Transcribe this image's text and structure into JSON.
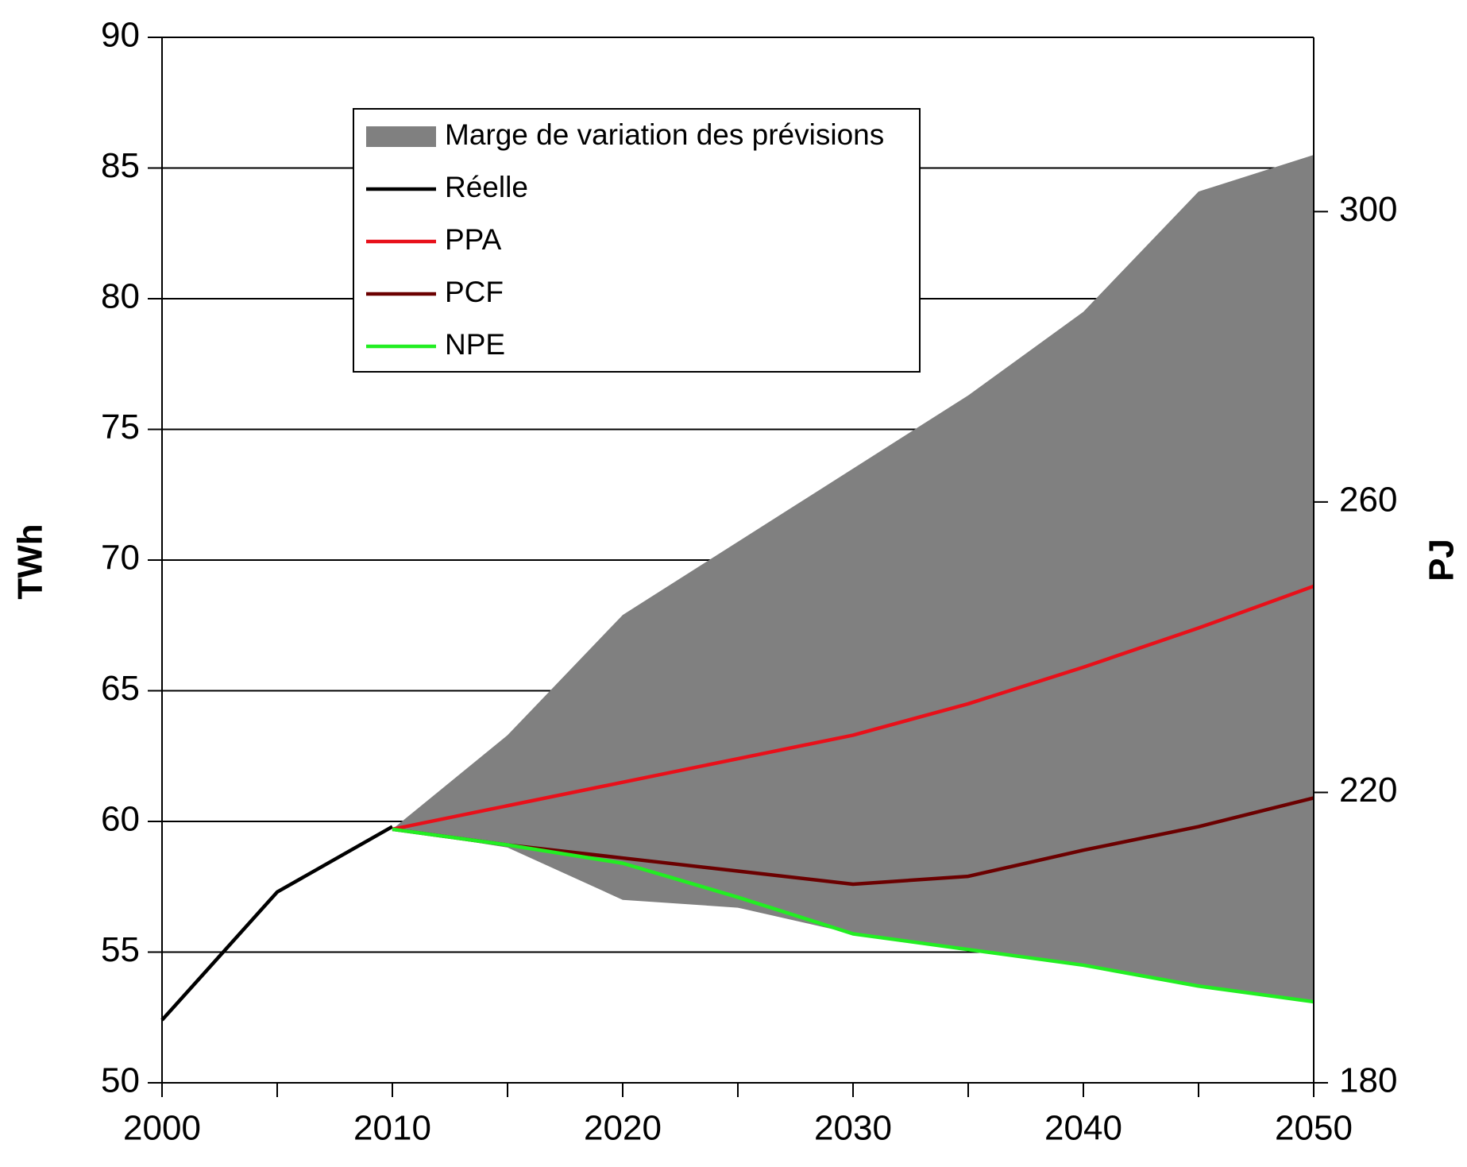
{
  "chart_data": {
    "type": "line",
    "x": [
      2000,
      2005,
      2010,
      2015,
      2020,
      2025,
      2030,
      2035,
      2040,
      2045,
      2050
    ],
    "xlim": [
      2000,
      2050
    ],
    "xticks": [
      2000,
      2010,
      2020,
      2030,
      2040,
      2050
    ],
    "xticks_minor": [
      2005,
      2015,
      2025,
      2035,
      2045
    ],
    "y_label": "TWh",
    "ylim": [
      50,
      90
    ],
    "yticks": [
      50,
      55,
      60,
      65,
      70,
      75,
      80,
      85,
      90
    ],
    "y2_label": "PJ",
    "y2lim": [
      180,
      324
    ],
    "y2ticks": [
      180,
      220,
      260,
      300
    ],
    "grid": true,
    "band": {
      "name": "Marge de variation des prévisions",
      "color": "#808080",
      "upper": [
        null,
        null,
        59.7,
        63.3,
        67.9,
        70.7,
        73.5,
        76.3,
        79.5,
        84.1,
        85.5
      ],
      "lower": [
        null,
        null,
        59.7,
        59.0,
        57.0,
        56.7,
        55.7,
        55.1,
        54.5,
        53.7,
        53.1
      ]
    },
    "series": [
      {
        "name": "Réelle",
        "color": "#000000",
        "values": [
          52.4,
          57.3,
          59.8,
          null,
          null,
          null,
          null,
          null,
          null,
          null,
          null
        ]
      },
      {
        "name": "PPA",
        "color": "#e8101a",
        "values": [
          null,
          null,
          59.7,
          60.6,
          61.5,
          62.4,
          63.3,
          64.5,
          65.9,
          67.4,
          69.0
        ]
      },
      {
        "name": "PCF",
        "color": "#6b0000",
        "values": [
          null,
          null,
          59.7,
          59.1,
          58.6,
          58.1,
          57.6,
          57.9,
          58.9,
          59.8,
          60.9
        ]
      },
      {
        "name": "NPE",
        "color": "#22ee22",
        "values": [
          null,
          null,
          59.7,
          59.1,
          58.4,
          57.1,
          55.7,
          55.1,
          54.5,
          53.7,
          53.1
        ]
      }
    ]
  }
}
